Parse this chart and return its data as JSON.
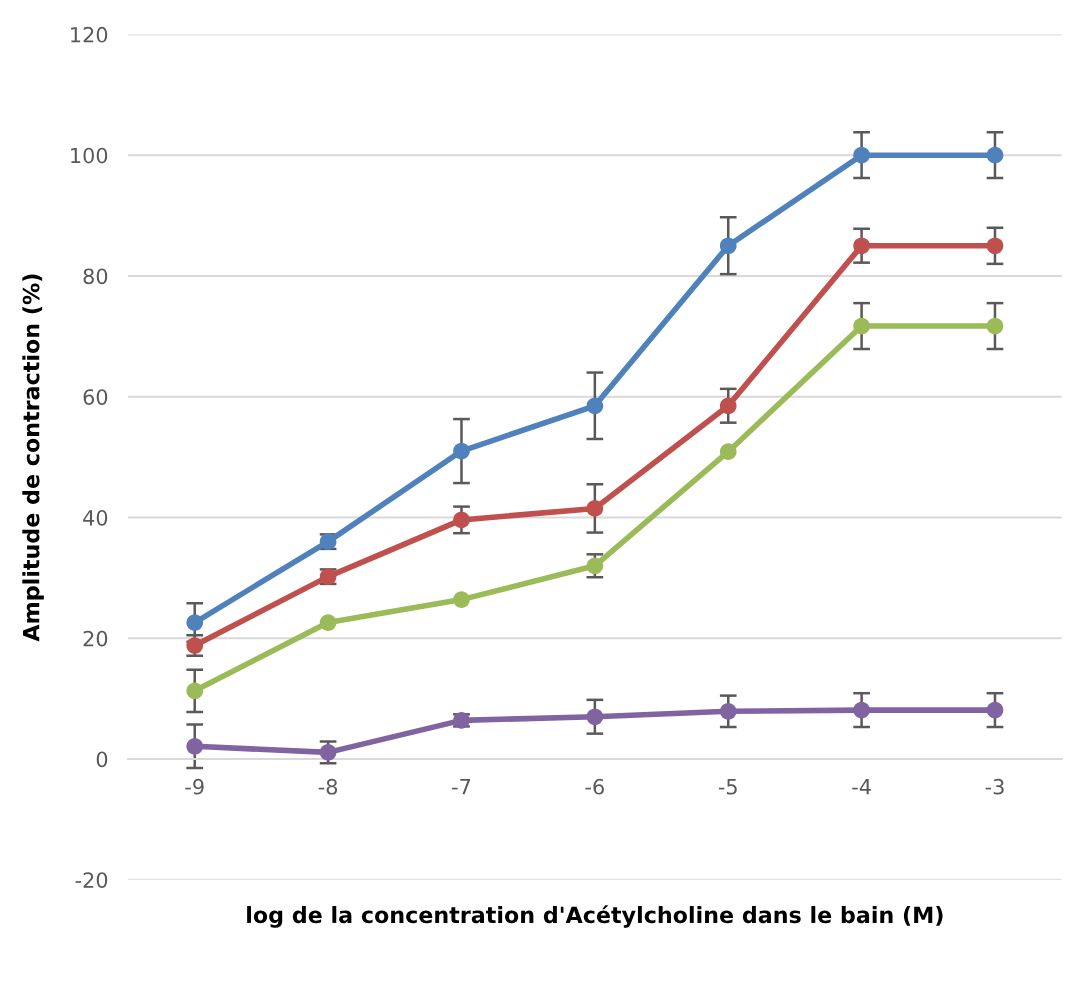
{
  "chart_data": {
    "type": "line",
    "xlabel": "log de la concentration d'Acétylcholine dans le bain (M)",
    "ylabel": "Amplitude de contraction (%)",
    "categories": [
      "-9",
      "-8",
      "-7",
      "-6",
      "-5",
      "-4",
      "-3"
    ],
    "series": [
      {
        "color": "#4f81bd",
        "values": [
          22.6,
          36,
          51,
          58.5,
          85,
          100,
          100
        ],
        "errors": [
          3.2,
          1.2,
          5.3,
          5.5,
          4.7,
          3.8,
          3.8
        ]
      },
      {
        "color": "#c0504d",
        "values": [
          18.8,
          30.2,
          39.6,
          41.5,
          58.5,
          85,
          85
        ],
        "errors": [
          1.7,
          1.2,
          2.2,
          4,
          2.8,
          2.8,
          3
        ]
      },
      {
        "color": "#9bbb59",
        "values": [
          11.3,
          22.6,
          26.4,
          32,
          50.9,
          71.7,
          71.7
        ],
        "errors": [
          3.5,
          null,
          null,
          1.9,
          null,
          3.8,
          3.8
        ]
      },
      {
        "color": "#8064a2",
        "values": [
          2.1,
          1.1,
          6.4,
          7,
          7.9,
          8.1,
          8.1
        ],
        "errors": [
          3.6,
          1.8,
          1,
          2.8,
          2.6,
          2.8,
          2.8
        ]
      }
    ],
    "ylim": [
      -20,
      120
    ],
    "yticks": [
      -20,
      0,
      20,
      40,
      60,
      80,
      100,
      120
    ],
    "grid": "y",
    "marker": "circle",
    "line_style": "solid"
  }
}
